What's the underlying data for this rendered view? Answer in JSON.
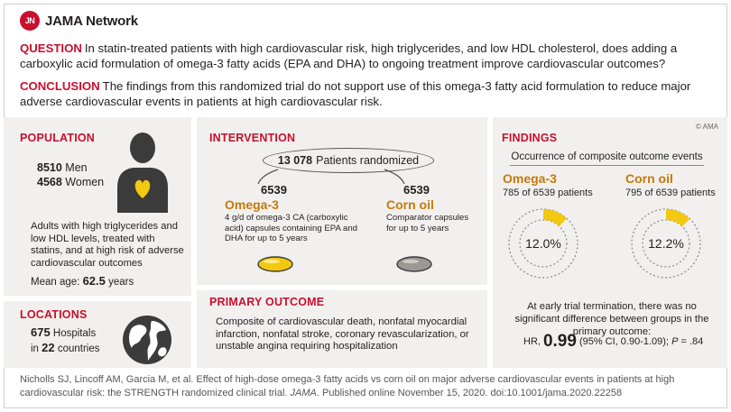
{
  "header": {
    "logo_badge": "JN",
    "logo_text": "JAMA Network",
    "question_label": "QUESTION",
    "question_text": "In statin-treated patients with high cardiovascular risk, high triglycerides, and low HDL cholesterol, does adding a carboxylic acid formulation of omega-3 fatty acids (EPA and DHA) to ongoing treatment improve cardiovascular outcomes?",
    "conclusion_label": "CONCLUSION",
    "conclusion_text": "The findings from this randomized trial do not support use of this omega-3 fatty acid formulation to reduce major adverse cardiovascular events in patients at high cardiovascular risk."
  },
  "copyright": "© AMA",
  "population": {
    "title": "POPULATION",
    "men_count": "8510",
    "men_label": "Men",
    "women_count": "4568",
    "women_label": "Women",
    "description": "Adults with high triglycerides and low HDL levels, treated with statins, and at high risk of adverse cardiovascular outcomes",
    "mean_age_label": "Mean age:",
    "mean_age_value": "62.5",
    "mean_age_unit": "years"
  },
  "locations": {
    "title": "LOCATIONS",
    "hospitals_count": "675",
    "hospitals_label": "Hospitals",
    "in_label": "in",
    "countries_count": "22",
    "countries_label": "countries"
  },
  "intervention": {
    "title": "INTERVENTION",
    "randomized_count": "13 078",
    "randomized_label": "Patients randomized",
    "arm1": {
      "n": "6539",
      "name": "Omega-3",
      "description": "4 g/d of omega-3 CA (carboxylic acid) capsules containing EPA and DHA for up to 5 years",
      "capsule_color": "#f2c811"
    },
    "arm2": {
      "n": "6539",
      "name": "Corn oil",
      "description": "Comparator capsules for up to 5 years",
      "capsule_color": "#9b9893"
    }
  },
  "primary_outcome": {
    "title": "PRIMARY OUTCOME",
    "text": "Composite of cardiovascular death, nonfatal myocardial infarction, nonfatal stroke, coronary revascularization, or unstable angina requiring hospitalization"
  },
  "findings": {
    "title": "FINDINGS",
    "subtitle": "Occurrence of composite outcome events",
    "omega": {
      "name": "Omega-3",
      "count_text": "785 of 6539 patients",
      "pct_text": "12.0%",
      "fraction": 0.12
    },
    "corn": {
      "name": "Corn oil",
      "count_text": "795 of 6539 patients",
      "pct_text": "12.2%",
      "fraction": 0.122
    },
    "note": "At early trial termination, there was no significant difference between groups in the primary outcome:",
    "hr_label": "HR,",
    "hr_value": "0.99",
    "hr_ci": "(95% CI, 0.90-1.09);",
    "p_label": "P",
    "p_value": "= .84",
    "accent_color": "#f2c811"
  },
  "citation": {
    "text1": "Nicholls SJ, Lincoff AM, Garcia M, et al. Effect of high-dose omega-3 fatty acids vs corn oil on major adverse cardiovascular events in patients at high cardiovascular risk: the STRENGTH randomized clinical trial.",
    "journal": "JAMA",
    "text2": ". Published online November 15, 2020. doi:10.1001/jama.2020.22258"
  }
}
